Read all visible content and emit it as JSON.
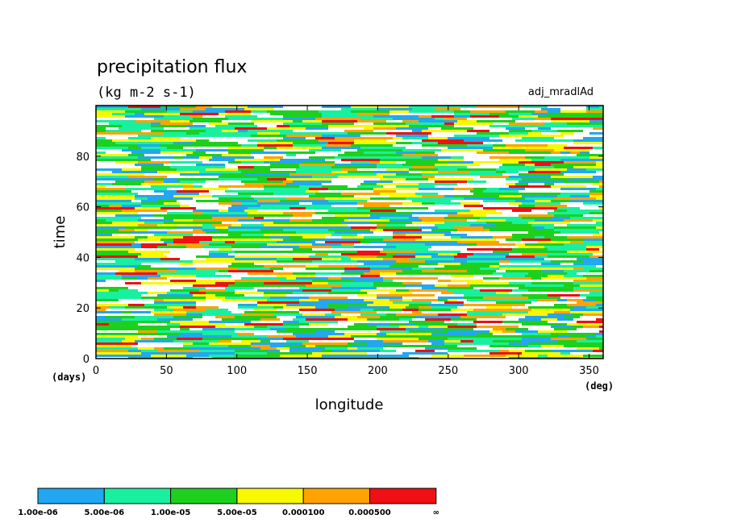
{
  "chart_data": {
    "type": "heatmap",
    "title": "precipitation flux",
    "subtitle": "(kg m-2 s-1)",
    "run_label": "adj_mradlAd",
    "xlabel": "longitude",
    "ylabel": "time",
    "x_unit": "(deg)",
    "y_unit": "(days)",
    "xlim": [
      0,
      360
    ],
    "ylim": [
      0,
      100
    ],
    "x_ticks": [
      0,
      50,
      100,
      150,
      200,
      250,
      300,
      350
    ],
    "y_ticks": [
      0,
      20,
      40,
      60,
      80
    ],
    "x_tick_labels": [
      "0",
      "50",
      "100",
      "150",
      "200",
      "250",
      "300",
      "350"
    ],
    "y_tick_labels": [
      "0",
      "20",
      "40",
      "60",
      "80"
    ],
    "contour_levels": [
      1e-06,
      5e-06,
      1e-05,
      5e-05,
      0.0001,
      0.0005
    ],
    "colorbar_labels": [
      "1.00e-06",
      "5.00e-06",
      "1.00e-05",
      "5.00e-05",
      "0.000100",
      "0.000500",
      "∞"
    ],
    "colors": [
      "#22a7f0",
      "#18f0a0",
      "#1ed01e",
      "#f8f800",
      "#ffa300",
      "#f00f14"
    ]
  }
}
